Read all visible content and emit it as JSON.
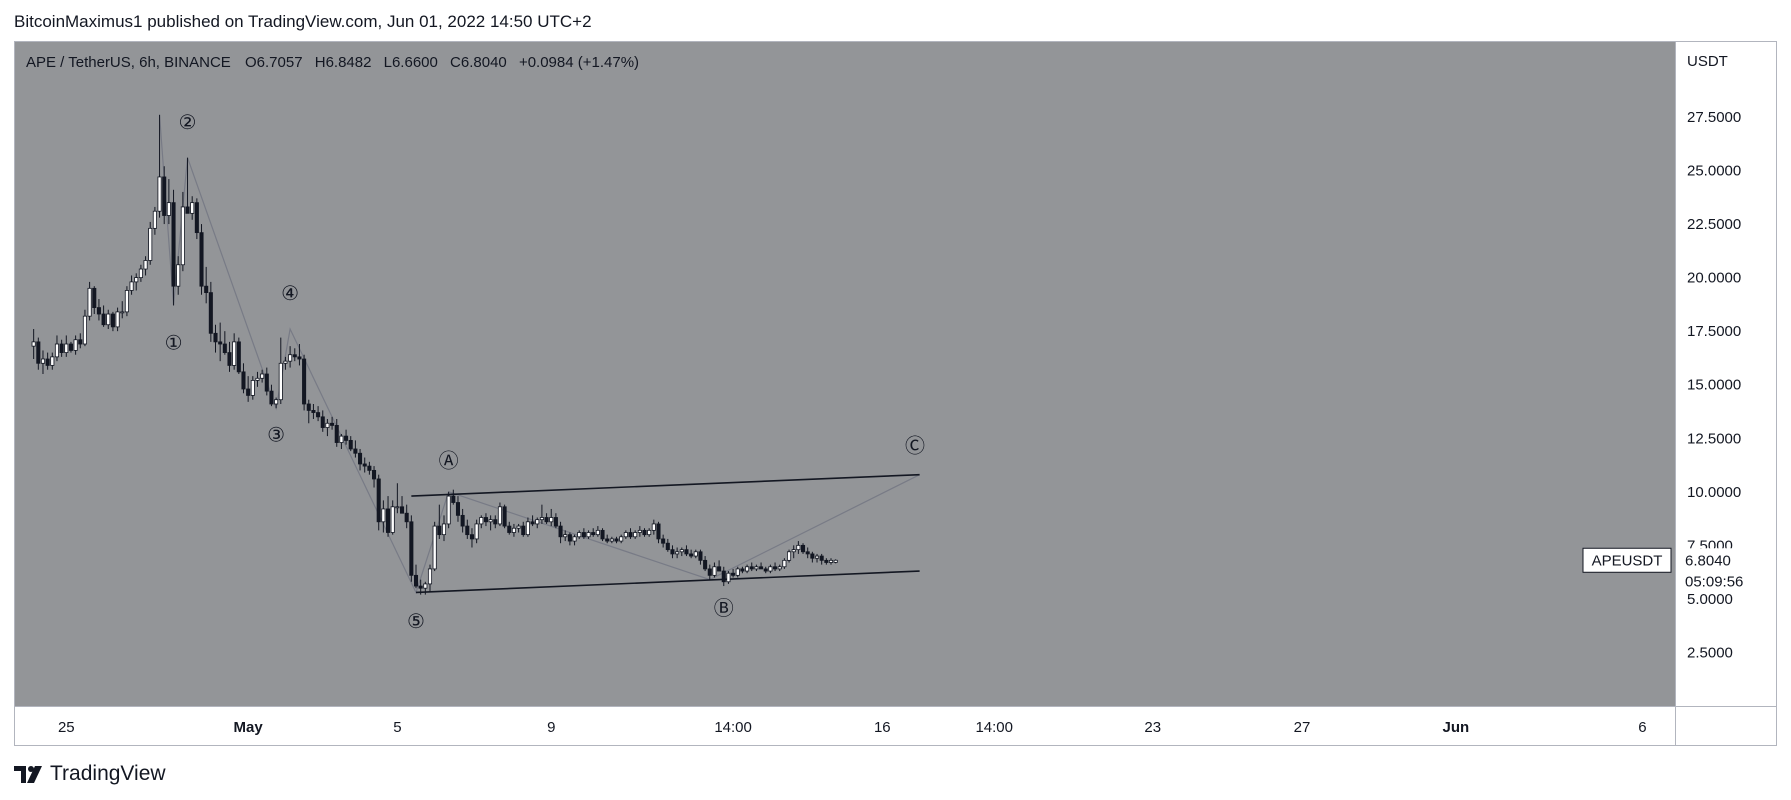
{
  "header": {
    "publisher_text": "BitcoinMaximus1 published on TradingView.com, Jun 01, 2022 14:50 UTC+2"
  },
  "footer": {
    "brand_name": "TradingView",
    "brand_icon": "tradingview-logo-icon"
  },
  "colors": {
    "chart_bg": "#939598",
    "panel_border": "#b2b5be",
    "up_candle": "#ffffff",
    "down_candle": "#131722",
    "wick": "#131722",
    "wave_line": "#787b86",
    "channel_line": "#131722",
    "text": "#131722"
  },
  "chart_data": {
    "type": "candlestick",
    "symbol": "APE / TetherUS, 6h, BINANCE",
    "ohlc_legend": {
      "O_label": "O",
      "O": "6.7057",
      "H_label": "H",
      "H": "6.8482",
      "L_label": "L",
      "L": "6.6600",
      "C_label": "C",
      "C": "6.8040",
      "change": "+0.0984 (+1.47%)"
    },
    "y_axis": {
      "unit": "USDT",
      "ticks": [
        "27.5000",
        "25.0000",
        "22.5000",
        "20.0000",
        "17.5000",
        "15.0000",
        "12.5000",
        "10.0000",
        "7.5000",
        "5.0000",
        "2.5000"
      ],
      "ylim": [
        0,
        31
      ]
    },
    "x_axis": {
      "ticks": [
        {
          "label": "25",
          "bold": false,
          "idx": 7
        },
        {
          "label": "May",
          "bold": true,
          "idx": 46
        },
        {
          "label": "5",
          "bold": false,
          "idx": 78
        },
        {
          "label": "9",
          "bold": false,
          "idx": 111
        },
        {
          "label": "14:00",
          "bold": false,
          "idx": 150
        },
        {
          "label": "16",
          "bold": false,
          "idx": 182
        },
        {
          "label": "14:00",
          "bold": false,
          "idx": 206
        },
        {
          "label": "23",
          "bold": false,
          "idx": 240
        },
        {
          "label": "27",
          "bold": false,
          "idx": 272
        },
        {
          "label": "Jun",
          "bold": true,
          "idx": 305
        },
        {
          "label": "6",
          "bold": false,
          "idx": 345
        }
      ],
      "range_idx": [
        -4,
        352
      ]
    },
    "price_label": {
      "symbol": "APEUSDT",
      "price": "6.8040",
      "countdown": "05:09:56"
    },
    "candles": [
      [
        0,
        16.8,
        17.6,
        16.2,
        17.0
      ],
      [
        1,
        17.0,
        17.2,
        15.7,
        16.0
      ],
      [
        2,
        16.0,
        16.6,
        15.5,
        16.2
      ],
      [
        3,
        16.2,
        16.5,
        15.7,
        15.9
      ],
      [
        4,
        15.9,
        16.5,
        15.7,
        16.3
      ],
      [
        5,
        16.3,
        17.3,
        16.1,
        16.9
      ],
      [
        6,
        16.9,
        17.1,
        16.3,
        16.5
      ],
      [
        7,
        16.5,
        17.3,
        16.3,
        16.9
      ],
      [
        8,
        16.9,
        17.0,
        16.5,
        16.6
      ],
      [
        9,
        16.6,
        17.3,
        16.4,
        17.1
      ],
      [
        10,
        17.1,
        17.4,
        16.7,
        16.9
      ],
      [
        11,
        16.9,
        18.5,
        16.8,
        18.2
      ],
      [
        12,
        18.2,
        19.8,
        18.0,
        19.5
      ],
      [
        13,
        19.5,
        19.6,
        18.3,
        18.6
      ],
      [
        14,
        18.6,
        19.0,
        18.0,
        18.3
      ],
      [
        15,
        18.3,
        18.7,
        17.7,
        17.8
      ],
      [
        16,
        17.8,
        18.5,
        17.6,
        18.3
      ],
      [
        17,
        18.3,
        18.4,
        17.5,
        17.7
      ],
      [
        18,
        17.7,
        18.6,
        17.5,
        18.4
      ],
      [
        19,
        18.4,
        18.9,
        18.1,
        18.4
      ],
      [
        20,
        18.4,
        19.6,
        18.2,
        19.4
      ],
      [
        21,
        19.4,
        20.1,
        19.2,
        19.8
      ],
      [
        22,
        19.8,
        20.2,
        19.4,
        20.0
      ],
      [
        23,
        20.0,
        20.6,
        19.8,
        20.4
      ],
      [
        24,
        20.4,
        21.0,
        20.1,
        20.8
      ],
      [
        25,
        20.8,
        22.6,
        20.6,
        22.3
      ],
      [
        26,
        22.3,
        23.3,
        22.0,
        23.1
      ],
      [
        27,
        23.1,
        27.6,
        22.8,
        24.7
      ],
      [
        28,
        24.7,
        25.2,
        22.5,
        22.9
      ],
      [
        29,
        22.9,
        24.6,
        22.5,
        23.5
      ],
      [
        30,
        23.5,
        24.1,
        18.7,
        19.6
      ],
      [
        31,
        19.6,
        21.0,
        19.2,
        20.6
      ],
      [
        32,
        20.6,
        24.0,
        20.3,
        23.3
      ],
      [
        33,
        23.3,
        25.6,
        23.0,
        23.0
      ],
      [
        34,
        23.0,
        23.8,
        22.7,
        23.5
      ],
      [
        35,
        23.5,
        23.7,
        21.8,
        22.1
      ],
      [
        36,
        22.1,
        22.5,
        19.2,
        19.6
      ],
      [
        37,
        19.6,
        20.5,
        18.8,
        19.3
      ],
      [
        38,
        19.3,
        19.8,
        17.0,
        17.4
      ],
      [
        39,
        17.4,
        17.8,
        16.5,
        17.0
      ],
      [
        40,
        17.0,
        17.9,
        16.1,
        16.9
      ],
      [
        41,
        16.9,
        17.5,
        16.4,
        16.5
      ],
      [
        42,
        16.5,
        17.0,
        15.6,
        15.9
      ],
      [
        43,
        15.9,
        17.4,
        15.7,
        17.0
      ],
      [
        44,
        17.0,
        17.2,
        15.5,
        15.6
      ],
      [
        45,
        15.6,
        16.0,
        14.6,
        14.8
      ],
      [
        46,
        14.8,
        15.4,
        14.2,
        14.5
      ],
      [
        47,
        14.5,
        15.4,
        14.3,
        15.2
      ],
      [
        48,
        15.2,
        15.6,
        14.9,
        15.3
      ],
      [
        49,
        15.3,
        15.7,
        15.1,
        15.5
      ],
      [
        50,
        15.5,
        15.8,
        14.5,
        14.7
      ],
      [
        51,
        14.7,
        15.0,
        14.0,
        14.1
      ],
      [
        52,
        14.1,
        14.4,
        13.9,
        14.3
      ],
      [
        53,
        14.3,
        17.2,
        14.1,
        16.0
      ],
      [
        54,
        16.0,
        16.3,
        15.7,
        16.1
      ],
      [
        55,
        16.1,
        16.8,
        15.8,
        16.4
      ],
      [
        56,
        16.4,
        16.7,
        16.1,
        16.3
      ],
      [
        57,
        16.3,
        16.9,
        15.9,
        16.2
      ],
      [
        58,
        16.2,
        16.4,
        13.8,
        14.1
      ],
      [
        59,
        14.1,
        14.3,
        13.2,
        13.8
      ],
      [
        60,
        13.8,
        14.1,
        13.4,
        13.7
      ],
      [
        61,
        13.7,
        14.0,
        13.3,
        13.5
      ],
      [
        62,
        13.5,
        13.8,
        12.8,
        13.0
      ],
      [
        63,
        13.0,
        13.4,
        12.6,
        13.2
      ],
      [
        64,
        13.2,
        13.5,
        12.9,
        13.1
      ],
      [
        65,
        13.1,
        13.4,
        12.1,
        12.3
      ],
      [
        66,
        12.3,
        12.7,
        12.0,
        12.6
      ],
      [
        67,
        12.6,
        12.9,
        12.2,
        12.4
      ],
      [
        68,
        12.4,
        12.6,
        11.9,
        12.0
      ],
      [
        69,
        12.0,
        12.4,
        11.6,
        11.8
      ],
      [
        70,
        11.8,
        12.0,
        11.0,
        11.3
      ],
      [
        71,
        11.3,
        11.6,
        10.9,
        11.2
      ],
      [
        72,
        11.2,
        11.4,
        10.8,
        11.0
      ],
      [
        73,
        11.0,
        11.2,
        10.2,
        10.6
      ],
      [
        74,
        10.6,
        10.8,
        8.2,
        8.6
      ],
      [
        75,
        8.6,
        9.6,
        8.1,
        9.2
      ],
      [
        76,
        9.2,
        9.8,
        7.9,
        8.1
      ],
      [
        77,
        8.1,
        9.6,
        8.0,
        9.3
      ],
      [
        78,
        9.3,
        10.4,
        9.0,
        9.3
      ],
      [
        79,
        9.3,
        9.8,
        9.0,
        9.0
      ],
      [
        80,
        9.0,
        9.4,
        8.3,
        8.6
      ],
      [
        81,
        8.6,
        8.9,
        5.8,
        6.1
      ],
      [
        82,
        6.1,
        6.6,
        5.5,
        5.6
      ],
      [
        83,
        5.6,
        5.9,
        5.2,
        5.5
      ],
      [
        84,
        5.5,
        5.8,
        5.2,
        5.7
      ],
      [
        85,
        5.7,
        6.6,
        5.3,
        6.4
      ],
      [
        86,
        6.4,
        8.6,
        6.3,
        8.4
      ],
      [
        87,
        8.4,
        9.4,
        7.8,
        8.0
      ],
      [
        88,
        8.0,
        8.9,
        7.7,
        8.5
      ],
      [
        89,
        8.5,
        10.0,
        8.3,
        9.8
      ],
      [
        90,
        9.8,
        10.1,
        9.4,
        9.5
      ],
      [
        91,
        9.5,
        9.8,
        8.6,
        8.9
      ],
      [
        92,
        8.9,
        9.2,
        8.1,
        8.4
      ],
      [
        93,
        8.4,
        8.7,
        7.8,
        8.0
      ],
      [
        94,
        8.0,
        8.3,
        7.4,
        7.8
      ],
      [
        95,
        7.8,
        8.7,
        7.6,
        8.5
      ],
      [
        96,
        8.5,
        8.9,
        8.3,
        8.8
      ],
      [
        97,
        8.8,
        9.0,
        8.4,
        8.6
      ],
      [
        98,
        8.6,
        8.9,
        8.2,
        8.7
      ],
      [
        99,
        8.7,
        8.9,
        8.3,
        8.5
      ],
      [
        100,
        8.5,
        9.5,
        8.4,
        9.3
      ],
      [
        101,
        9.3,
        9.4,
        8.3,
        8.4
      ],
      [
        102,
        8.4,
        8.6,
        8.0,
        8.1
      ],
      [
        103,
        8.1,
        8.5,
        7.9,
        8.3
      ],
      [
        104,
        8.3,
        8.5,
        8.1,
        8.4
      ],
      [
        105,
        8.4,
        8.6,
        7.9,
        8.0
      ],
      [
        106,
        8.0,
        8.8,
        7.9,
        8.6
      ],
      [
        107,
        8.6,
        8.9,
        8.4,
        8.5
      ],
      [
        108,
        8.5,
        8.8,
        8.3,
        8.7
      ],
      [
        109,
        8.7,
        9.4,
        8.5,
        8.8
      ],
      [
        110,
        8.8,
        9.0,
        8.5,
        8.6
      ],
      [
        111,
        8.6,
        9.2,
        8.4,
        8.8
      ],
      [
        112,
        8.8,
        9.0,
        8.3,
        8.4
      ],
      [
        113,
        8.4,
        8.6,
        7.6,
        7.9
      ],
      [
        114,
        7.9,
        8.2,
        7.7,
        8.0
      ],
      [
        115,
        8.0,
        8.1,
        7.5,
        7.7
      ],
      [
        116,
        7.7,
        8.0,
        7.5,
        7.9
      ],
      [
        117,
        7.9,
        8.2,
        7.8,
        8.1
      ],
      [
        118,
        8.1,
        8.3,
        7.8,
        7.9
      ],
      [
        119,
        7.9,
        8.2,
        7.8,
        8.1
      ],
      [
        120,
        8.1,
        8.3,
        7.9,
        8.0
      ],
      [
        121,
        8.0,
        8.4,
        7.9,
        8.2
      ],
      [
        122,
        8.2,
        8.3,
        7.7,
        7.8
      ],
      [
        123,
        7.8,
        8.0,
        7.6,
        7.7
      ],
      [
        124,
        7.7,
        7.9,
        7.6,
        7.8
      ],
      [
        125,
        7.8,
        7.9,
        7.6,
        7.7
      ],
      [
        126,
        7.7,
        8.0,
        7.6,
        7.9
      ],
      [
        127,
        7.9,
        8.2,
        7.8,
        8.1
      ],
      [
        128,
        8.1,
        8.3,
        7.8,
        7.9
      ],
      [
        129,
        7.9,
        8.2,
        7.8,
        8.1
      ],
      [
        130,
        8.1,
        8.4,
        7.9,
        8.2
      ],
      [
        131,
        8.2,
        8.3,
        7.9,
        8.0
      ],
      [
        132,
        8.0,
        8.3,
        7.9,
        8.2
      ],
      [
        133,
        8.2,
        8.7,
        8.0,
        8.5
      ],
      [
        134,
        8.5,
        8.6,
        7.6,
        7.8
      ],
      [
        135,
        7.8,
        8.0,
        7.4,
        7.6
      ],
      [
        136,
        7.6,
        7.8,
        7.2,
        7.3
      ],
      [
        137,
        7.3,
        7.5,
        6.9,
        7.1
      ],
      [
        138,
        7.1,
        7.4,
        6.9,
        7.2
      ],
      [
        139,
        7.2,
        7.4,
        7.0,
        7.3
      ],
      [
        140,
        7.3,
        7.5,
        7.0,
        7.1
      ],
      [
        141,
        7.1,
        7.3,
        6.9,
        7.0
      ],
      [
        142,
        7.0,
        7.3,
        6.9,
        7.2
      ],
      [
        143,
        7.2,
        7.3,
        6.6,
        6.8
      ],
      [
        144,
        6.8,
        7.0,
        6.3,
        6.4
      ],
      [
        145,
        6.4,
        6.6,
        5.9,
        6.1
      ],
      [
        146,
        6.1,
        6.7,
        6.0,
        6.5
      ],
      [
        147,
        6.5,
        6.8,
        6.3,
        6.3
      ],
      [
        148,
        6.3,
        6.5,
        5.6,
        5.8
      ],
      [
        149,
        5.8,
        6.3,
        5.7,
        6.2
      ],
      [
        150,
        6.2,
        6.4,
        6.0,
        6.1
      ],
      [
        151,
        6.1,
        6.5,
        6.0,
        6.4
      ],
      [
        152,
        6.4,
        6.5,
        6.2,
        6.3
      ],
      [
        153,
        6.3,
        6.6,
        6.2,
        6.5
      ],
      [
        154,
        6.5,
        6.7,
        6.3,
        6.4
      ],
      [
        155,
        6.4,
        6.6,
        6.3,
        6.5
      ],
      [
        156,
        6.5,
        6.7,
        6.4,
        6.4
      ],
      [
        157,
        6.4,
        6.5,
        6.2,
        6.3
      ],
      [
        158,
        6.3,
        6.6,
        6.2,
        6.5
      ],
      [
        159,
        6.5,
        6.7,
        6.3,
        6.4
      ],
      [
        160,
        6.4,
        6.6,
        6.3,
        6.5
      ],
      [
        161,
        6.5,
        6.9,
        6.4,
        6.8
      ],
      [
        162,
        6.8,
        7.3,
        6.7,
        7.2
      ],
      [
        163,
        7.2,
        7.5,
        6.9,
        7.3
      ],
      [
        164,
        7.3,
        7.7,
        7.1,
        7.5
      ],
      [
        165,
        7.5,
        7.6,
        7.1,
        7.2
      ],
      [
        166,
        7.2,
        7.4,
        6.9,
        7.1
      ],
      [
        167,
        7.1,
        7.2,
        6.7,
        6.9
      ],
      [
        168,
        6.9,
        7.1,
        6.7,
        7.0
      ],
      [
        169,
        7.0,
        7.1,
        6.6,
        6.8
      ],
      [
        170,
        6.8,
        6.9,
        6.6,
        6.7
      ],
      [
        171,
        6.7,
        6.9,
        6.6,
        6.8
      ],
      [
        172,
        6.7057,
        6.8482,
        6.66,
        6.804
      ]
    ],
    "channel_lines": [
      {
        "points": [
          [
            81,
            9.8
          ],
          [
            190,
            10.8
          ]
        ]
      },
      {
        "points": [
          [
            82,
            5.3
          ],
          [
            190,
            6.3
          ]
        ]
      }
    ],
    "wave_path": [
      [
        27,
        27.6
      ],
      [
        30,
        18.7
      ],
      [
        33,
        25.6
      ],
      [
        52,
        13.9
      ],
      [
        55,
        17.6
      ],
      [
        82,
        5.3
      ],
      [
        89,
        10.0
      ],
      [
        145,
        5.9
      ],
      [
        190,
        10.8
      ]
    ],
    "wave_labels": [
      {
        "text": "①",
        "idx": 30,
        "price": 16.9
      },
      {
        "text": "②",
        "idx": 33,
        "price": 27.2
      },
      {
        "text": "③",
        "idx": 52,
        "price": 12.6
      },
      {
        "text": "④",
        "idx": 55,
        "price": 19.2
      },
      {
        "text": "⑤",
        "idx": 82,
        "price": 3.9
      },
      {
        "text": "Ⓐ",
        "idx": 89,
        "price": 11.4
      },
      {
        "text": "Ⓑ",
        "idx": 148,
        "price": 4.5
      },
      {
        "text": "Ⓒ",
        "idx": 189,
        "price": 12.1
      }
    ]
  }
}
